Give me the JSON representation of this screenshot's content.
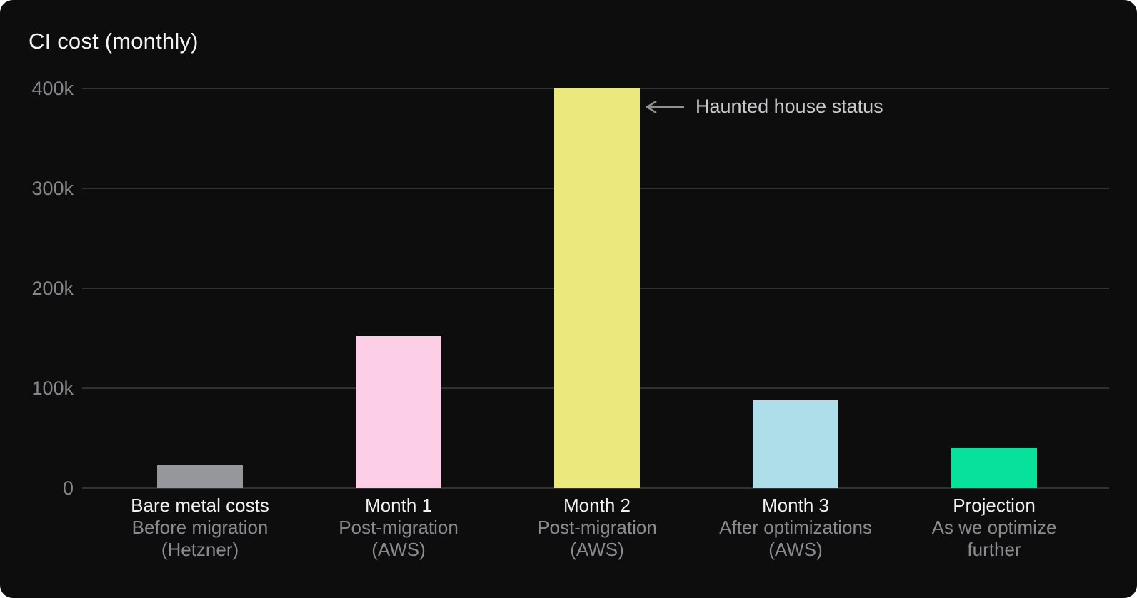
{
  "title": "CI cost (monthly)",
  "chart_data": {
    "type": "bar",
    "title": "CI cost (monthly)",
    "categories": [
      {
        "label": "Bare metal costs",
        "sub_lines": [
          "Before migration",
          "(Hetzner)"
        ]
      },
      {
        "label": "Month 1",
        "sub_lines": [
          "Post-migration",
          "(AWS)"
        ]
      },
      {
        "label": "Month 2",
        "sub_lines": [
          "Post-migration",
          "(AWS)"
        ]
      },
      {
        "label": "Month 3",
        "sub_lines": [
          "After optimizations",
          "(AWS)"
        ]
      },
      {
        "label": "Projection",
        "sub_lines": [
          "As we optimize",
          "further"
        ]
      }
    ],
    "values": [
      23000,
      152000,
      400000,
      88000,
      40000
    ],
    "bar_colors": [
      "#95979d",
      "#fdcfe6",
      "#ebe97e",
      "#addee9",
      "#06e29c"
    ],
    "y_ticks": [
      {
        "label": "0",
        "value": 0
      },
      {
        "label": "100k",
        "value": 100000
      },
      {
        "label": "200k",
        "value": 200000
      },
      {
        "label": "300k",
        "value": 300000
      },
      {
        "label": "400k",
        "value": 400000
      }
    ],
    "ylim": [
      0,
      400000
    ],
    "grid": true,
    "legend": "none",
    "annotation": {
      "text": "Haunted house status",
      "points_to": "Month 2",
      "arrow_direction": "left"
    }
  },
  "colors": {
    "background": "#0d0d0d",
    "gridline": "#323236",
    "tick_text": "#86868b",
    "label_primary": "#f1f1f2",
    "label_secondary": "#8a8a8f",
    "annotation_text": "#c7c7cc",
    "arrow": "#909095"
  }
}
